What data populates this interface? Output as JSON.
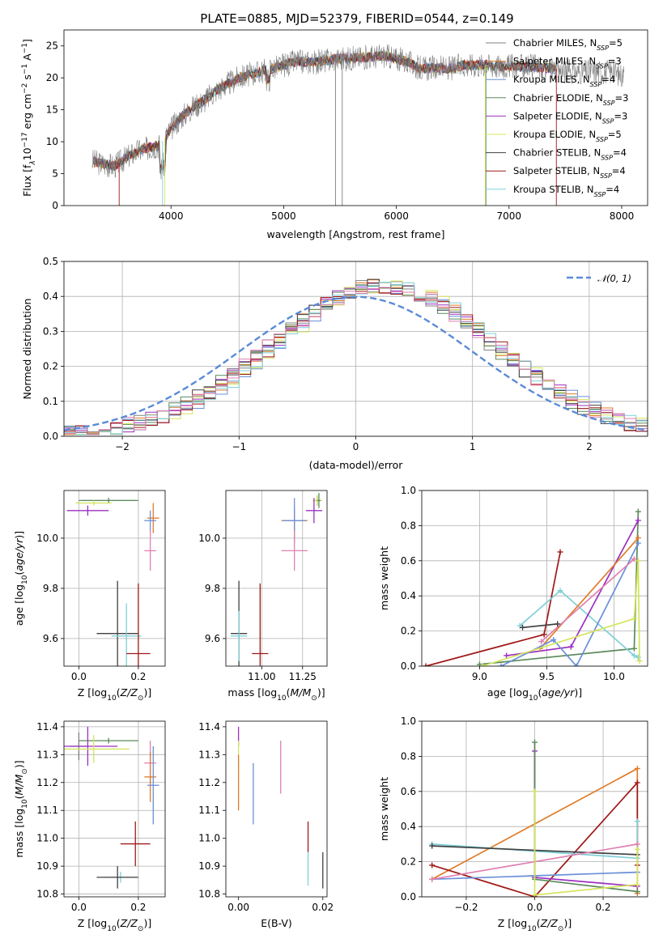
{
  "figure_title": "PLATE=0885, MJD=52379, FIBERID=0544, z=0.149",
  "colors": {
    "Chabrier MILES": "#808080",
    "Salpeter MILES": "#e07b28",
    "Kroupa MILES": "#6a8fd8",
    "Chabrier ELODIE": "#5a8a5a",
    "Salpeter ELODIE": "#9b30c0",
    "Kroupa ELODIE": "#d4e45c",
    "Chabrier STELIB": "#404040",
    "Salpeter STELIB": "#a01818",
    "Kroupa STELIB": "#7fd0d8",
    "pink": "#e080b0",
    "gaussian": "#5b8bd8"
  },
  "chart_data": [
    {
      "id": "spectrum",
      "type": "line",
      "xlabel": "wavelength [Angstrom, rest frame]",
      "ylabel_parts": [
        "Flux [f",
        "λ",
        "10",
        "−17",
        " erg cm",
        "−2",
        " s",
        "−1",
        " A",
        "−1",
        "]"
      ],
      "xlim": [
        3050,
        8230
      ],
      "ylim": [
        0,
        27.5
      ],
      "xticks": [
        4000,
        5000,
        6000,
        7000,
        8000
      ],
      "yticks": [
        0,
        5,
        10,
        15,
        20,
        25
      ],
      "legend_position": "upper right",
      "legend": [
        {
          "name": "Chabrier MILES",
          "nssp": "5"
        },
        {
          "name": "Salpeter MILES",
          "nssp": "3"
        },
        {
          "name": "Kroupa MILES",
          "nssp": "4"
        },
        {
          "name": "Chabrier ELODIE",
          "nssp": "3"
        },
        {
          "name": "Salpeter ELODIE",
          "nssp": "3"
        },
        {
          "name": "Kroupa ELODIE",
          "nssp": "5"
        },
        {
          "name": "Chabrier STELIB",
          "nssp": "4"
        },
        {
          "name": "Salpeter STELIB",
          "nssp": "4"
        },
        {
          "name": "Kroupa STELIB",
          "nssp": "4"
        }
      ],
      "continuum": {
        "x": [
          3300,
          3400,
          3500,
          3600,
          3700,
          3800,
          3900,
          4000,
          4100,
          4200,
          4300,
          4400,
          4500,
          4600,
          4700,
          4800,
          4900,
          5000,
          5100,
          5200,
          5300,
          5400,
          5500,
          5600,
          5700,
          5800,
          5900,
          6000,
          6100,
          6200,
          6300,
          6400,
          6500,
          6600,
          6700,
          6800,
          6900,
          7000,
          7100,
          7200,
          7300,
          7400,
          7500,
          7600,
          7700,
          7800,
          7900,
          8000
        ],
        "y": [
          7.0,
          6.5,
          6.2,
          7.5,
          8.5,
          9.0,
          9.5,
          12.0,
          14.0,
          15.5,
          16.5,
          18.0,
          19.0,
          20.0,
          20.5,
          21.0,
          21.5,
          22.0,
          22.5,
          22.5,
          22.5,
          22.8,
          23.0,
          23.0,
          23.2,
          23.3,
          23.5,
          23.0,
          22.5,
          21.5,
          21.5,
          21.5,
          21.5,
          22.0,
          22.0,
          22.0,
          21.8,
          21.8,
          21.8,
          21.7,
          21.5,
          21.5,
          21.0,
          21.0,
          21.0,
          21.0,
          21.0,
          20.5
        ]
      }
    },
    {
      "id": "residuals",
      "type": "line",
      "xlabel": "(data-model)/error",
      "ylabel": "Normed distribution",
      "xlim": [
        -2.5,
        2.5
      ],
      "ylim": [
        0,
        0.5
      ],
      "xticks": [
        -2,
        -1,
        0,
        1,
        2
      ],
      "xticklabels": [
        "−2",
        "−1",
        "0",
        "1",
        "2"
      ],
      "yticks": [
        0.0,
        0.1,
        0.2,
        0.3,
        0.4,
        0.5
      ],
      "yticklabels": [
        "0.0",
        "0.1",
        "0.2",
        "0.3",
        "0.4",
        "0.5"
      ],
      "legend_position": "upper right",
      "gaussian_label": "𝒩(0, 1)",
      "histogram_bin_width": 0.1
    },
    {
      "id": "age_vs_Z",
      "type": "scatter",
      "xlabel": "Z [log10(Z/Z⊙)]",
      "ylabel": "age  [log10(age/yr)]",
      "xlim": [
        -0.05,
        0.29
      ],
      "ylim": [
        9.49,
        10.19
      ],
      "xticks": [
        0.0,
        0.2
      ],
      "xticklabels": [
        "0.0",
        "0.2"
      ],
      "yticks": [
        9.6,
        9.8,
        10.0
      ],
      "yticklabels": [
        "9.6",
        "9.8",
        "10.0"
      ],
      "points": [
        {
          "c": "Chabrier MILES",
          "x": 0.1,
          "y": 10.15,
          "xe": 0.09,
          "ye": 0.01
        },
        {
          "c": "Chabrier ELODIE",
          "x": 0.1,
          "y": 10.15,
          "xe": 0.1,
          "ye": 0.01
        },
        {
          "c": "Kroupa ELODIE",
          "x": 0.05,
          "y": 10.14,
          "xe": 0.06,
          "ye": 0.01
        },
        {
          "c": "Salpeter ELODIE",
          "x": 0.03,
          "y": 10.11,
          "xe": 0.07,
          "ye": 0.02
        },
        {
          "c": "Salpeter MILES",
          "x": 0.25,
          "y": 10.08,
          "xe": 0.02,
          "ye": 0.06
        },
        {
          "c": "Kroupa MILES",
          "x": 0.24,
          "y": 10.07,
          "xe": 0.02,
          "ye": 0.04
        },
        {
          "c": "pink",
          "x": 0.24,
          "y": 9.95,
          "xe": 0.02,
          "ye": 0.08
        },
        {
          "c": "Chabrier STELIB",
          "x": 0.13,
          "y": 9.62,
          "xe": 0.07,
          "ye": 0.21
        },
        {
          "c": "Kroupa STELIB",
          "x": 0.16,
          "y": 9.61,
          "xe": 0.05,
          "ye": 0.13
        },
        {
          "c": "Salpeter STELIB",
          "x": 0.2,
          "y": 9.54,
          "xe": 0.04,
          "ye": 0.28
        }
      ]
    },
    {
      "id": "age_vs_mass",
      "type": "scatter",
      "xlabel": "mass [log10(M/M⊙)]",
      "xlim": [
        10.78,
        11.4
      ],
      "ylim": [
        9.49,
        10.19
      ],
      "xticks": [
        11.0,
        11.25
      ],
      "xticklabels": [
        "11.00",
        "11.25"
      ],
      "yticks": [
        9.6,
        9.8,
        10.0
      ],
      "yticklabels": [
        "9.6",
        "9.8",
        "10.0"
      ],
      "points": [
        {
          "c": "Chabrier MILES",
          "x": 11.34,
          "y": 10.15,
          "xe": 0.02,
          "ye": 0.02
        },
        {
          "c": "Kroupa ELODIE",
          "x": 11.34,
          "y": 10.15,
          "xe": 0.03,
          "ye": 0.02
        },
        {
          "c": "Chabrier ELODIE",
          "x": 11.35,
          "y": 10.15,
          "xe": 0.01,
          "ye": 0.03
        },
        {
          "c": "Salpeter ELODIE",
          "x": 11.32,
          "y": 10.11,
          "xe": 0.05,
          "ye": 0.05
        },
        {
          "c": "Salpeter MILES",
          "x": 11.2,
          "y": 10.07,
          "xe": 0.08,
          "ye": 0.05
        },
        {
          "c": "Kroupa MILES",
          "x": 11.2,
          "y": 10.07,
          "xe": 0.07,
          "ye": 0.09
        },
        {
          "c": "pink",
          "x": 11.2,
          "y": 9.95,
          "xe": 0.08,
          "ye": 0.08
        },
        {
          "c": "Chabrier STELIB",
          "x": 10.86,
          "y": 9.62,
          "xe": 0.05,
          "ye": 0.21
        },
        {
          "c": "Kroupa STELIB",
          "x": 10.86,
          "y": 9.61,
          "xe": 0.05,
          "ye": 0.1
        },
        {
          "c": "Salpeter STELIB",
          "x": 10.99,
          "y": 9.54,
          "xe": 0.05,
          "ye": 0.28
        }
      ]
    },
    {
      "id": "weight_vs_age",
      "type": "line",
      "xlabel": "age  [log10(age/yr)]",
      "ylabel": "mass weight",
      "xlim": [
        8.57,
        10.25
      ],
      "ylim": [
        0,
        1.0
      ],
      "xticks": [
        9.0,
        9.5,
        10.0
      ],
      "xticklabels": [
        "9.0",
        "9.5",
        "10.0"
      ],
      "yticks": [
        0.0,
        0.2,
        0.4,
        0.6,
        0.8,
        1.0
      ],
      "yticklabels": [
        "0.0",
        "0.2",
        "0.4",
        "0.6",
        "0.8",
        "1.0"
      ],
      "series": [
        {
          "c": "Chabrier ELODIE",
          "x": [
            9.0,
            10.15,
            10.18
          ],
          "y": [
            0.01,
            0.1,
            0.88
          ]
        },
        {
          "c": "Salpeter STELIB",
          "x": [
            8.6,
            9.48,
            9.6
          ],
          "y": [
            0.0,
            0.18,
            0.65
          ]
        },
        {
          "c": "Kroupa STELIB",
          "x": [
            9.3,
            9.6,
            10.15,
            10.18
          ],
          "y": [
            0.23,
            0.43,
            0.06,
            0.05
          ]
        },
        {
          "c": "Salpeter ELODIE",
          "x": [
            9.2,
            9.68,
            10.18
          ],
          "y": [
            0.06,
            0.11,
            0.83
          ]
        },
        {
          "c": "Salpeter MILES",
          "x": [
            9.45,
            10.18
          ],
          "y": [
            0.1,
            0.73
          ]
        },
        {
          "c": "Kroupa MILES",
          "x": [
            9.16,
            9.55,
            9.72,
            10.18
          ],
          "y": [
            0.0,
            0.15,
            0.0,
            0.7
          ]
        },
        {
          "c": "pink",
          "x": [
            9.46,
            10.15
          ],
          "y": [
            0.14,
            0.61
          ]
        },
        {
          "c": "Kroupa ELODIE",
          "x": [
            9.02,
            10.15,
            10.18,
            10.19
          ],
          "y": [
            0.0,
            0.27,
            0.6,
            0.03
          ]
        },
        {
          "c": "Chabrier STELIB",
          "x": [
            9.32,
            9.58
          ],
          "y": [
            0.22,
            0.24
          ]
        }
      ]
    },
    {
      "id": "mass_vs_Z",
      "type": "scatter",
      "xlabel": "Z [log10(Z/Z⊙)]",
      "ylabel": "mass [log10(M/M⊙)]",
      "xlim": [
        -0.05,
        0.29
      ],
      "ylim": [
        10.79,
        11.42
      ],
      "xticks": [
        0.0,
        0.2
      ],
      "xticklabels": [
        "0.0",
        "0.2"
      ],
      "yticks": [
        10.8,
        10.9,
        11.0,
        11.1,
        11.2,
        11.3,
        11.4
      ],
      "yticklabels": [
        "10.8",
        "10.9",
        "11.0",
        "11.1",
        "11.2",
        "11.3",
        "11.4"
      ],
      "points": [
        {
          "c": "Chabrier ELODIE",
          "x": 0.1,
          "y": 11.35,
          "xe": 0.1,
          "ye": 0.01
        },
        {
          "c": "Chabrier MILES",
          "x": 0.0,
          "y": 11.33,
          "xe": 0.03,
          "ye": 0.05
        },
        {
          "c": "Salpeter ELODIE",
          "x": 0.03,
          "y": 11.33,
          "xe": 0.1,
          "ye": 0.07
        },
        {
          "c": "Kroupa ELODIE",
          "x": 0.05,
          "y": 11.32,
          "xe": 0.12,
          "ye": 0.05
        },
        {
          "c": "pink",
          "x": 0.24,
          "y": 11.27,
          "xe": 0.02,
          "ye": 0.08
        },
        {
          "c": "Salpeter MILES",
          "x": 0.24,
          "y": 11.22,
          "xe": 0.02,
          "ye": 0.09
        },
        {
          "c": "Kroupa MILES",
          "x": 0.25,
          "y": 11.19,
          "xe": 0.02,
          "ye": 0.14
        },
        {
          "c": "Salpeter STELIB",
          "x": 0.19,
          "y": 10.98,
          "xe": 0.05,
          "ye": 0.08
        },
        {
          "c": "Kroupa STELIB",
          "x": 0.14,
          "y": 10.86,
          "xe": 0.05,
          "ye": 0.02
        },
        {
          "c": "Chabrier STELIB",
          "x": 0.13,
          "y": 10.86,
          "xe": 0.07,
          "ye": 0.04
        }
      ]
    },
    {
      "id": "mass_vs_ebv",
      "type": "scatter",
      "xlabel": "E(B-V)",
      "xlim": [
        -0.003,
        0.021
      ],
      "ylim": [
        10.79,
        11.42
      ],
      "xticks": [
        0.0,
        0.02
      ],
      "xticklabels": [
        "0.00",
        "0.02"
      ],
      "yticks": [
        10.8,
        10.9,
        11.0,
        11.1,
        11.2,
        11.3,
        11.4
      ],
      "yticklabels": [
        "10.8",
        "10.9",
        "11.0",
        "11.1",
        "11.2",
        "11.3",
        "11.4"
      ],
      "segments": [
        {
          "c": "Salpeter ELODIE",
          "x": 0.0,
          "y0": 11.33,
          "y1": 11.4
        },
        {
          "c": "Kroupa ELODIE",
          "x": 0.0,
          "y0": 11.25,
          "y1": 11.35
        },
        {
          "c": "Salpeter MILES",
          "x": 0.0,
          "y0": 11.1,
          "y1": 11.3
        },
        {
          "c": "Kroupa MILES",
          "x": 0.0035,
          "y0": 11.05,
          "y1": 11.27
        },
        {
          "c": "pink",
          "x": 0.01,
          "y0": 11.16,
          "y1": 11.35
        },
        {
          "c": "Salpeter STELIB",
          "x": 0.0165,
          "y0": 10.95,
          "y1": 11.06
        },
        {
          "c": "Kroupa STELIB",
          "x": 0.0165,
          "y0": 10.83,
          "y1": 10.95
        },
        {
          "c": "Chabrier STELIB",
          "x": 0.02,
          "y0": 10.82,
          "y1": 10.95
        }
      ]
    },
    {
      "id": "weight_vs_Z",
      "type": "line",
      "xlabel": "Z [log10(Z/Z⊙)]",
      "ylabel": "mass weight",
      "xlim": [
        -0.33,
        0.33
      ],
      "ylim": [
        0,
        1.0
      ],
      "xticks": [
        -0.2,
        0.0,
        0.2
      ],
      "xticklabels": [
        "−0.2",
        "0.0",
        "0.2"
      ],
      "yticks": [
        0.0,
        0.2,
        0.4,
        0.6,
        0.8,
        1.0
      ],
      "yticklabels": [
        "0.0",
        "0.2",
        "0.4",
        "0.6",
        "0.8",
        "1.0"
      ],
      "series": [
        {
          "c": "Salpeter MILES",
          "x": [
            -0.3,
            0.3,
            0.3
          ],
          "y": [
            0.1,
            0.73,
            0.02
          ]
        },
        {
          "c": "Salpeter STELIB",
          "x": [
            -0.3,
            0.0,
            0.3,
            0.3
          ],
          "y": [
            0.18,
            0.0,
            0.65,
            0.18
          ]
        },
        {
          "c": "Kroupa STELIB",
          "x": [
            -0.3,
            0.3,
            0.3
          ],
          "y": [
            0.3,
            0.22,
            0.43
          ]
        },
        {
          "c": "Chabrier STELIB",
          "x": [
            -0.3,
            0.3
          ],
          "y": [
            0.29,
            0.24
          ]
        },
        {
          "c": "Kroupa MILES",
          "x": [
            -0.3,
            0.0,
            0.3
          ],
          "y": [
            0.1,
            0.12,
            0.14
          ]
        },
        {
          "c": "pink",
          "x": [
            -0.3,
            0.3
          ],
          "y": [
            0.1,
            0.3
          ]
        },
        {
          "c": "Salpeter ELODIE",
          "x": [
            0.0,
            0.0,
            0.3
          ],
          "y": [
            0.83,
            0.11,
            0.06
          ]
        },
        {
          "c": "Chabrier ELODIE",
          "x": [
            0.0,
            0.0,
            0.3
          ],
          "y": [
            0.88,
            0.1,
            0.03
          ]
        },
        {
          "c": "Kroupa ELODIE",
          "x": [
            0.0,
            0.0,
            0.3,
            0.3
          ],
          "y": [
            0.6,
            0.01,
            0.07,
            0.27
          ]
        }
      ]
    }
  ]
}
